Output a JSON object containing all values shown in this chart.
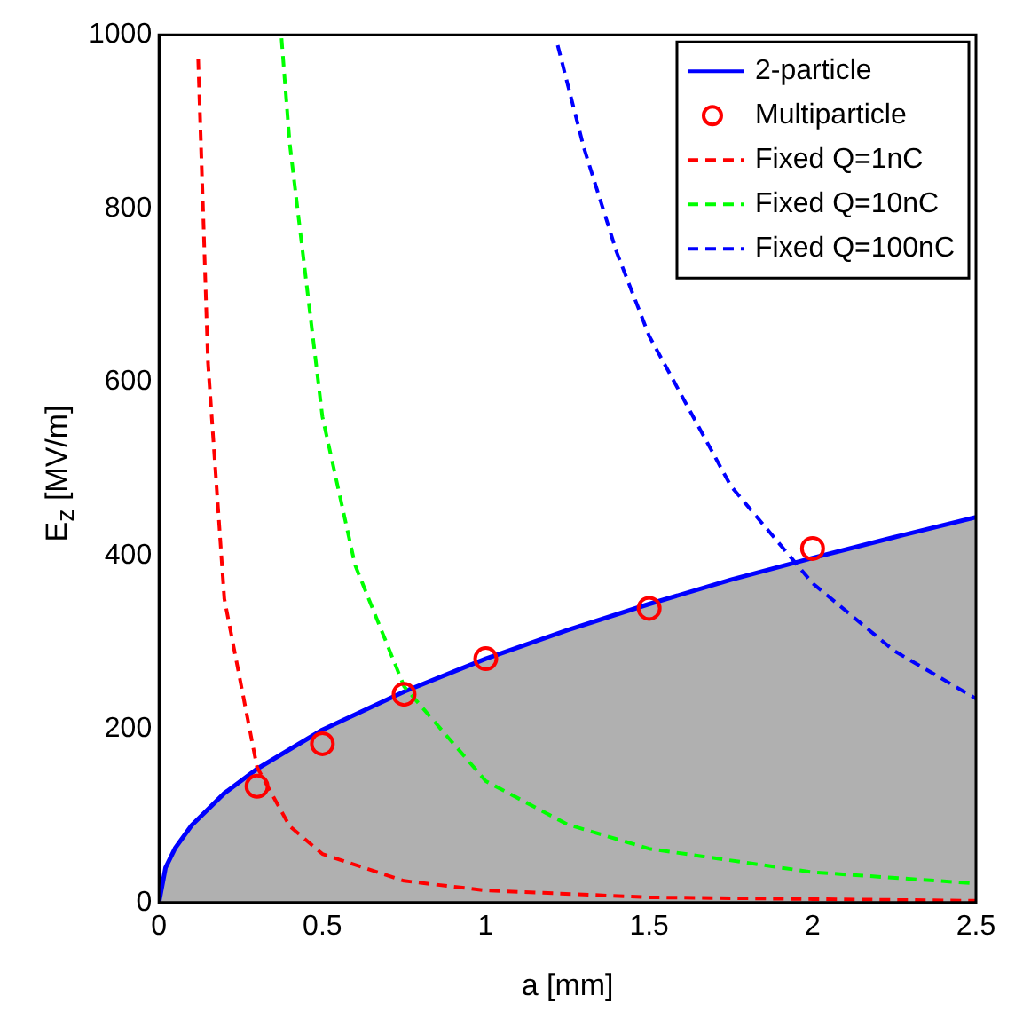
{
  "chart_data": {
    "type": "line",
    "xlabel": "a [mm]",
    "ylabel": "E$_{z}$ [MV/m]",
    "xlim": [
      0,
      2.5
    ],
    "xticks": [
      0,
      0.5,
      1,
      1.5,
      2,
      2.5
    ],
    "ylim": [
      0,
      1000
    ],
    "yticks": [
      0,
      200,
      400,
      600,
      800,
      1000
    ],
    "grid": false,
    "legend": "top right",
    "series": [
      {
        "name": "2-particle",
        "type": "area",
        "color": "#0000ff",
        "line_style": "solid",
        "marker": "none",
        "x": [
          0,
          0.02,
          0.05,
          0.1,
          0.2,
          0.3,
          0.5,
          0.75,
          1,
          1.25,
          1.5,
          1.75,
          2,
          2.25,
          2.5
        ],
        "values": [
          0,
          40,
          63,
          89,
          126,
          154,
          199,
          243,
          281,
          314,
          344,
          372,
          397,
          421,
          444
        ]
      },
      {
        "name": "Multiparticle",
        "type": "scatter",
        "color": "#ff0000",
        "marker": "circle",
        "x": [
          0.3,
          0.5,
          0.75,
          1,
          1.5,
          2
        ],
        "values": [
          134,
          183,
          240,
          281,
          339,
          408
        ]
      },
      {
        "name": "Fixed Q=1nC",
        "color": "#ff0000",
        "line_style": "dashed",
        "marker": "none",
        "x": [
          0.12,
          0.15,
          0.2,
          0.3,
          0.4,
          0.5,
          0.75,
          1,
          1.5,
          2,
          2.5
        ],
        "values": [
          972,
          622,
          350,
          156,
          88,
          56,
          25,
          14,
          6,
          4,
          2
        ]
      },
      {
        "name": "Fixed Q=10nC",
        "color": "#00ff00",
        "line_style": "dashed",
        "marker": "none",
        "x": [
          0.375,
          0.4,
          0.5,
          0.6,
          0.75,
          1,
          1.25,
          1.5,
          2,
          2.5
        ],
        "values": [
          996,
          875,
          560,
          389,
          249,
          140,
          90,
          62,
          35,
          22
        ]
      },
      {
        "name": "Fixed Q=100nC",
        "color": "#0000ff",
        "line_style": "dashed",
        "marker": "none",
        "x": [
          1.22,
          1.3,
          1.4,
          1.5,
          1.75,
          2,
          2.25,
          2.5
        ],
        "values": [
          988,
          870,
          750,
          653,
          480,
          368,
          290,
          235
        ]
      }
    ]
  }
}
